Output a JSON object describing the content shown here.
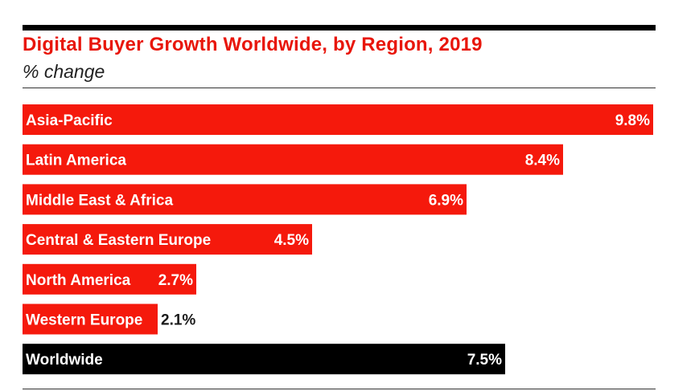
{
  "chart_data": {
    "type": "bar",
    "orientation": "horizontal",
    "title": "Digital Buyer Growth Worldwide, by Region, 2019",
    "subtitle": "% change",
    "categories": [
      "Asia-Pacific",
      "Latin America",
      "Middle East & Africa",
      "Central & Eastern Europe",
      "North America",
      "Western Europe",
      "Worldwide"
    ],
    "values": [
      9.8,
      8.4,
      6.9,
      4.5,
      2.7,
      2.1,
      7.5
    ],
    "value_labels": [
      "9.8%",
      "8.4%",
      "6.9%",
      "4.5%",
      "2.7%",
      "2.1%",
      "7.5%"
    ],
    "bar_colors": [
      "#f5190c",
      "#f5190c",
      "#f5190c",
      "#f5190c",
      "#f5190c",
      "#f5190c",
      "#000000"
    ],
    "xlim": [
      0,
      9.8
    ],
    "xlabel": "",
    "ylabel": ""
  },
  "colors": {
    "accent": "#e8160b",
    "bar": "#f5190c",
    "total_bar": "#000000",
    "text_dark": "#1a1a1a"
  }
}
